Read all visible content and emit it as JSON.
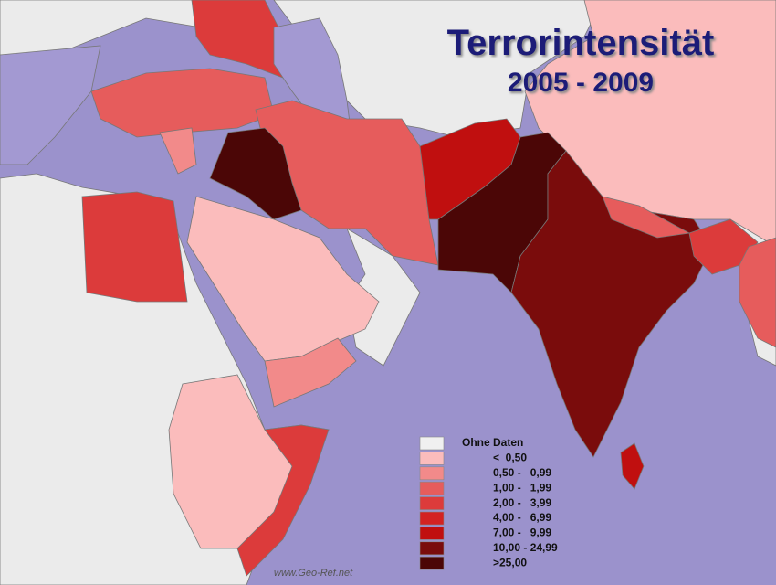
{
  "header": {
    "title": "Terrorintensität",
    "subtitle": "2005 - 2009"
  },
  "legend": {
    "items": [
      {
        "label": "Ohne Daten",
        "color": "#f0f0f0"
      },
      {
        "label": "<  0,50",
        "color": "#fbbcbc"
      },
      {
        "label": "0,50 -   0,99",
        "color": "#f28a8a"
      },
      {
        "label": "1,00 -   1,99",
        "color": "#e65c5c"
      },
      {
        "label": "2,00 -   3,99",
        "color": "#dc3b3b"
      },
      {
        "label": "4,00 -   6,99",
        "color": "#d32222"
      },
      {
        "label": "7,00 -   9,99",
        "color": "#c00f0f"
      },
      {
        "label": "10,00 - 24,99",
        "color": "#7a0c0c"
      },
      {
        "label": ">25,00",
        "color": "#4b0606"
      }
    ]
  },
  "footer": {
    "watermark": "www.Geo-Ref.net"
  }
}
